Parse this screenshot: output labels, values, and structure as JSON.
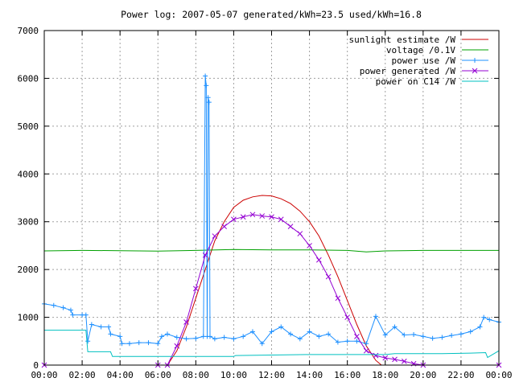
{
  "chart_data": {
    "type": "line",
    "title": "Power log: 2007-05-07 generated/kWh=23.5 used/kWh=16.8",
    "xlabel": "",
    "ylabel": "",
    "xlim": [
      0,
      24
    ],
    "ylim": [
      0,
      7000
    ],
    "x_unit": "hours",
    "x_ticks": [
      "00:00",
      "02:00",
      "04:00",
      "06:00",
      "08:00",
      "10:00",
      "12:00",
      "14:00",
      "16:00",
      "18:00",
      "20:00",
      "22:00",
      "00:00"
    ],
    "y_ticks": [
      0,
      1000,
      2000,
      3000,
      4000,
      5000,
      6000,
      7000
    ],
    "grid": true,
    "legend_position": "top-right",
    "series": [
      {
        "name": "sunlight estimate /W",
        "color": "#cc0000",
        "marker": "none",
        "points": [
          [
            0,
            0
          ],
          [
            6.5,
            0
          ],
          [
            7,
            300
          ],
          [
            7.5,
            800
          ],
          [
            8,
            1400
          ],
          [
            8.5,
            2000
          ],
          [
            9,
            2600
          ],
          [
            9.5,
            3000
          ],
          [
            10,
            3300
          ],
          [
            10.5,
            3450
          ],
          [
            11,
            3520
          ],
          [
            11.5,
            3550
          ],
          [
            12,
            3540
          ],
          [
            12.5,
            3480
          ],
          [
            13,
            3380
          ],
          [
            13.5,
            3220
          ],
          [
            14,
            3000
          ],
          [
            14.5,
            2700
          ],
          [
            15,
            2300
          ],
          [
            15.5,
            1850
          ],
          [
            16,
            1350
          ],
          [
            16.5,
            850
          ],
          [
            17,
            400
          ],
          [
            17.5,
            100
          ],
          [
            17.8,
            0
          ],
          [
            24,
            0
          ]
        ]
      },
      {
        "name": "voltage /0.1V",
        "color": "#00a000",
        "marker": "none",
        "points": [
          [
            0,
            2390
          ],
          [
            2,
            2400
          ],
          [
            4,
            2395
          ],
          [
            6,
            2385
          ],
          [
            8,
            2400
          ],
          [
            10,
            2420
          ],
          [
            12,
            2410
          ],
          [
            14,
            2410
          ],
          [
            16,
            2400
          ],
          [
            17,
            2370
          ],
          [
            18,
            2390
          ],
          [
            20,
            2400
          ],
          [
            22,
            2400
          ],
          [
            24,
            2400
          ]
        ]
      },
      {
        "name": "power use /W",
        "color": "#1e90ff",
        "marker": "plus",
        "points": [
          [
            0,
            1280
          ],
          [
            0.5,
            1250
          ],
          [
            1,
            1200
          ],
          [
            1.4,
            1150
          ],
          [
            1.5,
            1050
          ],
          [
            2,
            1050
          ],
          [
            2.2,
            1050
          ],
          [
            2.3,
            500
          ],
          [
            2.5,
            850
          ],
          [
            3,
            800
          ],
          [
            3.4,
            800
          ],
          [
            3.5,
            650
          ],
          [
            4,
            600
          ],
          [
            4.1,
            450
          ],
          [
            4.5,
            450
          ],
          [
            5,
            470
          ],
          [
            5.5,
            470
          ],
          [
            6,
            450
          ],
          [
            6.2,
            600
          ],
          [
            6.5,
            650
          ],
          [
            7,
            580
          ],
          [
            7.5,
            550
          ],
          [
            8,
            560
          ],
          [
            8.4,
            600
          ],
          [
            8.5,
            6050
          ],
          [
            8.55,
            5850
          ],
          [
            8.6,
            600
          ],
          [
            8.65,
            5600
          ],
          [
            8.7,
            5500
          ],
          [
            8.75,
            600
          ],
          [
            9,
            550
          ],
          [
            9.5,
            580
          ],
          [
            10,
            550
          ],
          [
            10.5,
            600
          ],
          [
            11,
            700
          ],
          [
            11.5,
            450
          ],
          [
            12,
            700
          ],
          [
            12.5,
            800
          ],
          [
            13,
            650
          ],
          [
            13.5,
            550
          ],
          [
            14,
            700
          ],
          [
            14.5,
            600
          ],
          [
            15,
            650
          ],
          [
            15.5,
            480
          ],
          [
            16,
            500
          ],
          [
            16.5,
            500
          ],
          [
            17,
            450
          ],
          [
            17.5,
            1020
          ],
          [
            18,
            630
          ],
          [
            18.5,
            800
          ],
          [
            19,
            630
          ],
          [
            19.5,
            640
          ],
          [
            20,
            600
          ],
          [
            20.5,
            560
          ],
          [
            21,
            580
          ],
          [
            21.5,
            620
          ],
          [
            22,
            650
          ],
          [
            22.5,
            700
          ],
          [
            23,
            800
          ],
          [
            23.2,
            1000
          ],
          [
            23.5,
            950
          ],
          [
            24,
            900
          ]
        ]
      },
      {
        "name": "power generated /W",
        "color": "#9400d3",
        "marker": "cross",
        "points": [
          [
            0,
            0
          ],
          [
            6,
            0
          ],
          [
            6.5,
            0
          ],
          [
            7,
            400
          ],
          [
            7.5,
            900
          ],
          [
            8,
            1600
          ],
          [
            8.5,
            2300
          ],
          [
            9,
            2700
          ],
          [
            9.5,
            2900
          ],
          [
            10,
            3050
          ],
          [
            10.5,
            3100
          ],
          [
            11,
            3150
          ],
          [
            11.5,
            3120
          ],
          [
            12,
            3100
          ],
          [
            12.5,
            3050
          ],
          [
            13,
            2900
          ],
          [
            13.5,
            2750
          ],
          [
            14,
            2500
          ],
          [
            14.5,
            2200
          ],
          [
            15,
            1850
          ],
          [
            15.5,
            1400
          ],
          [
            16,
            1000
          ],
          [
            16.5,
            600
          ],
          [
            17,
            300
          ],
          [
            17.5,
            200
          ],
          [
            18,
            150
          ],
          [
            18.5,
            120
          ],
          [
            19,
            80
          ],
          [
            19.5,
            30
          ],
          [
            20,
            0
          ],
          [
            24,
            0
          ]
        ]
      },
      {
        "name": "power on C14 /W",
        "color": "#00c0c0",
        "marker": "none",
        "points": [
          [
            0,
            730
          ],
          [
            2.2,
            730
          ],
          [
            2.3,
            280
          ],
          [
            3.5,
            280
          ],
          [
            3.6,
            180
          ],
          [
            10,
            180
          ],
          [
            10.1,
            200
          ],
          [
            14,
            220
          ],
          [
            18,
            220
          ],
          [
            18.5,
            240
          ],
          [
            21,
            240
          ],
          [
            22.5,
            250
          ],
          [
            23.3,
            260
          ],
          [
            23.4,
            160
          ],
          [
            24,
            300
          ]
        ]
      }
    ]
  }
}
